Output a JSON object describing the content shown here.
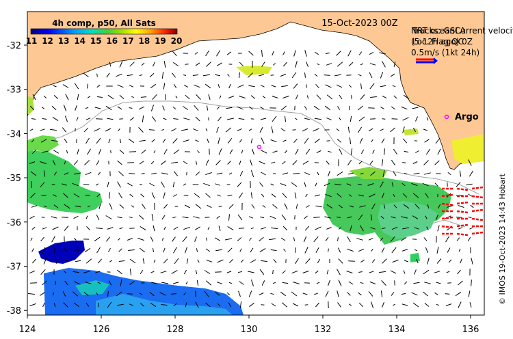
{
  "map": {
    "date_label": "15-Oct-2023 00Z",
    "colorbar": {
      "title": "4h comp, p50, All Sats",
      "ticks": [
        "11",
        "12",
        "13",
        "14",
        "15",
        "16",
        "17",
        "18",
        "19",
        "20"
      ]
    },
    "legend": {
      "line1": "NRT oceanCurrent velocity",
      "line1_overlay": "Tracks: GSLA",
      "line2": "(5-12h ago) 0Z",
      "line2_overlay": "Loc. Flag QC",
      "line3": "0.5m/s (1kt 24h)"
    },
    "argo_label": "Argo",
    "x_ticks": [
      "124",
      "126",
      "128",
      "130",
      "132",
      "134",
      "136"
    ],
    "y_ticks": [
      "-32",
      "-33",
      "-34",
      "-35",
      "-36",
      "-37",
      "-38"
    ],
    "credit": "© IMOS 19-Oct-2023 14:43 Hobart",
    "colors": {
      "land": "#fdc894",
      "arrow": "#000000",
      "legend_arrow_red": "#ff0000",
      "legend_arrow_blue": "#0000ff",
      "argo_marker": "#ff00ff",
      "bathymetry": "#a0a0a0",
      "flagged_vectors": "#ff0000"
    }
  }
}
